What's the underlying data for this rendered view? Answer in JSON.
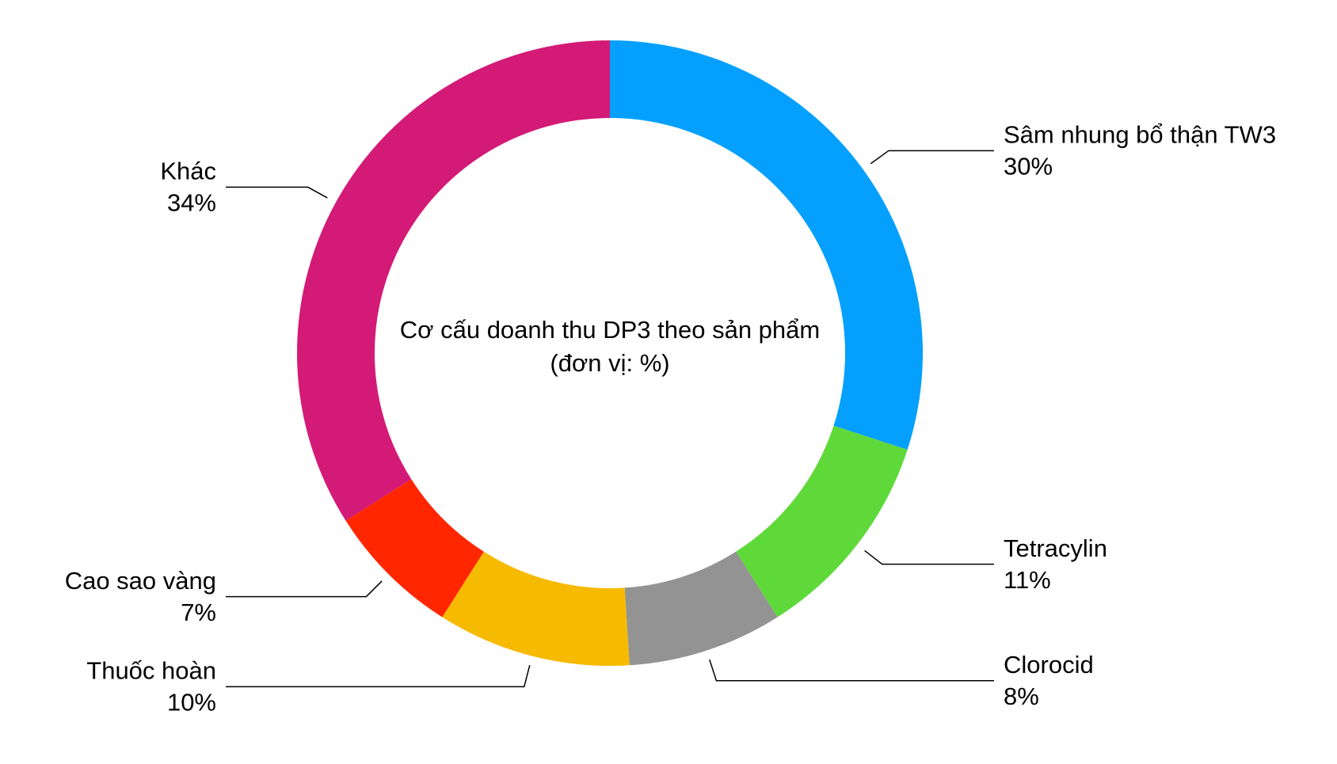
{
  "chart_data": {
    "type": "pie",
    "title": "Cơ cấu doanh thu DP3 theo sản phẩm (đơn vị: %)",
    "categories": [
      "Sâm nhung bổ thận TW3",
      "Tetracylin",
      "Clorocid",
      "Thuốc hoàn",
      "Cao sao vàng",
      "Khác"
    ],
    "values": [
      30,
      11,
      8,
      10,
      7,
      34
    ],
    "value_labels": [
      "30%",
      "11%",
      "8%",
      "10%",
      "7%",
      "34%"
    ],
    "colors": [
      "#05a0fd",
      "#5fd93a",
      "#939393",
      "#f6ba00",
      "#ff2600",
      "#d31a77"
    ]
  }
}
